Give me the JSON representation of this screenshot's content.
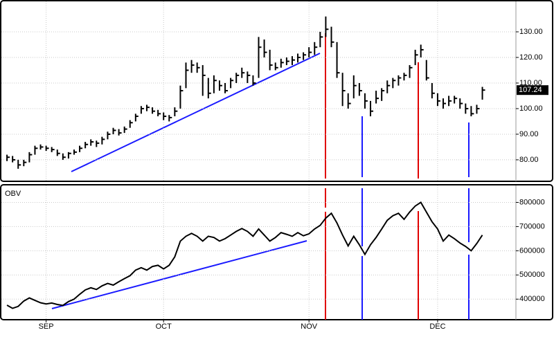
{
  "chart_data": [
    {
      "type": "ohlc",
      "color": "#000000",
      "high": [
        82,
        81.5,
        80,
        80,
        83,
        85.5,
        86,
        85.5,
        85,
        84,
        82.5,
        83,
        84,
        85.5,
        87,
        88,
        87.5,
        89,
        91,
        92.5,
        92,
        93,
        95.5,
        98,
        101,
        101.5,
        100.5,
        99.5,
        98.5,
        97.5,
        100.5,
        109,
        118,
        119,
        118,
        117,
        112,
        113,
        111,
        110,
        112,
        114,
        116,
        114.5,
        113,
        128,
        127,
        123,
        118,
        119.5,
        120,
        120.5,
        121.5,
        122,
        124,
        126,
        130,
        136,
        132,
        126,
        114,
        106,
        113,
        110,
        106,
        103,
        107,
        108,
        111,
        112,
        113,
        114,
        117,
        123,
        125,
        119,
        110,
        106,
        104,
        105,
        105,
        104,
        102,
        101,
        101.5,
        108.5
      ],
      "low": [
        79.5,
        79,
        76.5,
        77.5,
        79,
        82,
        84,
        83.5,
        83,
        81.5,
        80,
        80.5,
        82,
        83,
        84.5,
        85.5,
        85,
        86,
        88,
        90,
        89.5,
        90.5,
        92.5,
        95,
        98,
        99,
        98,
        97,
        95.5,
        95,
        97,
        100,
        108,
        114,
        114,
        105,
        104,
        106,
        107,
        106,
        108,
        110,
        112,
        110,
        109,
        112,
        120,
        115,
        115,
        116,
        117,
        117,
        118,
        119,
        120,
        121,
        124,
        128,
        124,
        112,
        101,
        100,
        104,
        105,
        100,
        97,
        102,
        103,
        106,
        108,
        109,
        111,
        112,
        117,
        120,
        111,
        104,
        101,
        100,
        101,
        102,
        100,
        98,
        97,
        98,
        103.5
      ],
      "close": [
        81,
        80,
        78,
        79,
        82,
        84.5,
        85,
        84.5,
        84,
        82.5,
        81,
        82.5,
        83,
        84.5,
        86,
        87,
        86.5,
        88,
        90,
        91.5,
        90.5,
        92,
        94.5,
        97,
        100,
        100.5,
        99,
        98,
        97,
        96.5,
        99,
        107,
        115,
        117,
        116,
        113,
        106,
        111,
        109,
        107,
        111,
        113,
        114,
        113,
        110,
        124,
        122,
        117,
        116,
        118,
        118.5,
        119,
        120,
        121,
        122,
        124,
        128,
        131,
        126,
        114,
        107,
        102,
        109,
        107,
        103,
        99,
        104,
        107,
        109,
        111,
        112,
        113,
        116,
        121,
        123,
        112,
        106,
        103,
        102,
        103,
        104,
        102,
        100,
        98,
        100,
        107.24
      ],
      "xlim": [
        -1,
        91
      ],
      "ylim": [
        71.6,
        141.9
      ],
      "yticks": [
        {
          "value": 80,
          "label": "80.00"
        },
        {
          "value": 90,
          "label": "90.00"
        },
        {
          "value": 100,
          "label": "100.00"
        },
        {
          "value": 110,
          "label": "110.00"
        },
        {
          "value": 120,
          "label": "120.00"
        },
        {
          "value": 130,
          "label": "130.00"
        }
      ],
      "grid": true
    },
    {
      "type": "line",
      "title": "OBV",
      "color": "#000000",
      "values": [
        375000,
        362000,
        370000,
        392000,
        405000,
        395000,
        385000,
        380000,
        384000,
        378000,
        374000,
        390000,
        400000,
        420000,
        438000,
        447000,
        440000,
        455000,
        465000,
        458000,
        472000,
        485000,
        497000,
        520000,
        530000,
        520000,
        535000,
        540000,
        525000,
        540000,
        575000,
        640000,
        660000,
        672000,
        660000,
        640000,
        660000,
        655000,
        640000,
        650000,
        665000,
        680000,
        692000,
        680000,
        660000,
        690000,
        665000,
        640000,
        655000,
        675000,
        668000,
        660000,
        675000,
        662000,
        670000,
        690000,
        705000,
        735000,
        755000,
        715000,
        665000,
        620000,
        660000,
        625000,
        585000,
        625000,
        655000,
        690000,
        726000,
        745000,
        755000,
        730000,
        760000,
        785000,
        800000,
        760000,
        720000,
        690000,
        640000,
        665000,
        650000,
        632000,
        618000,
        600000,
        630000,
        665000
      ],
      "xlim": [
        -1,
        91
      ],
      "xticks": [
        {
          "value": 7,
          "label": "SEP"
        },
        {
          "value": 28,
          "label": "OCT"
        },
        {
          "value": 54,
          "label": "NOV"
        },
        {
          "value": 77,
          "label": "DEC"
        }
      ],
      "ylim": [
        315000,
        870000
      ],
      "yticks": [
        400000,
        500000,
        600000,
        700000,
        800000
      ],
      "grid": true
    }
  ]
}
